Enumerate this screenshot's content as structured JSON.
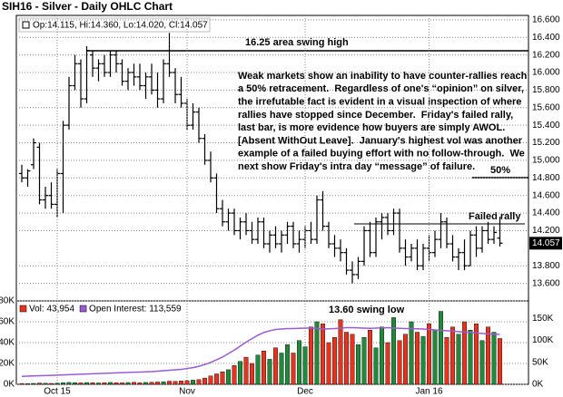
{
  "chart_data": [
    {
      "type": "ohlc",
      "title": "SIH16 - Silver - Daily OHLC Chart",
      "legend": "Op:14.115, Hi:14.360, Lo:14.020, Cl:14.057",
      "color": "#000000",
      "open": [
        14.85,
        14.8,
        14.95,
        15.15,
        14.55,
        14.6,
        14.5,
        14.85,
        15.4,
        15.85,
        16.1,
        15.7,
        16.2,
        16.05,
        16.1,
        16.0,
        16.2,
        16.1,
        15.9,
        16.0,
        15.95,
        15.85,
        15.95,
        15.8,
        15.7,
        16.1,
        16.0,
        15.75,
        15.65,
        15.4,
        15.55,
        15.25,
        15.0,
        14.8,
        14.45,
        14.3,
        14.4,
        14.2,
        14.3,
        14.2,
        14.1,
        14.3,
        14.05,
        14.15,
        14.05,
        14.15,
        14.25,
        14.05,
        14.1,
        14.2,
        14.1,
        14.55,
        14.25,
        14.05,
        14.0,
        13.95,
        13.75,
        13.7,
        13.85,
        14.2,
        13.95,
        14.3,
        14.35,
        14.2,
        14.4,
        14.0,
        13.9,
        14.0,
        13.8,
        14.0,
        13.95,
        14.1,
        14.3,
        14.05,
        13.9,
        13.95,
        13.8,
        14.15,
        14.0,
        14.2,
        14.1,
        14.115
      ],
      "high": [
        14.95,
        14.9,
        15.25,
        15.2,
        14.7,
        14.75,
        14.9,
        15.45,
        15.95,
        16.2,
        16.15,
        16.3,
        16.25,
        16.15,
        16.2,
        16.25,
        16.25,
        16.15,
        16.05,
        16.1,
        16.1,
        16.0,
        16.1,
        16.0,
        16.15,
        16.45,
        16.05,
        15.95,
        15.7,
        15.65,
        15.6,
        15.3,
        15.1,
        14.85,
        14.55,
        14.45,
        14.45,
        14.35,
        14.4,
        14.3,
        14.35,
        14.35,
        14.2,
        14.25,
        14.2,
        14.3,
        14.3,
        14.2,
        14.25,
        14.3,
        14.6,
        14.65,
        14.3,
        14.15,
        14.1,
        14.0,
        13.85,
        13.9,
        14.25,
        14.3,
        14.35,
        14.4,
        14.4,
        14.45,
        14.45,
        14.1,
        14.05,
        14.1,
        14.05,
        14.15,
        14.2,
        14.4,
        14.35,
        14.15,
        14.0,
        14.1,
        14.2,
        14.25,
        14.25,
        14.3,
        14.25,
        14.36
      ],
      "low": [
        14.75,
        14.7,
        14.9,
        14.5,
        14.45,
        14.45,
        14.35,
        14.4,
        15.35,
        15.8,
        15.6,
        15.65,
        15.95,
        15.9,
        15.95,
        15.95,
        16.0,
        15.85,
        15.8,
        15.85,
        15.8,
        15.7,
        15.75,
        15.6,
        15.65,
        15.95,
        15.65,
        15.6,
        15.35,
        15.35,
        15.2,
        14.95,
        14.75,
        14.4,
        14.25,
        14.2,
        14.15,
        14.1,
        14.15,
        14.05,
        14.05,
        14.0,
        13.95,
        14.0,
        13.95,
        14.05,
        14.0,
        13.95,
        14.0,
        14.05,
        14.05,
        14.2,
        14.0,
        13.9,
        13.85,
        13.7,
        13.6,
        13.65,
        13.8,
        13.9,
        13.9,
        14.1,
        14.15,
        14.15,
        13.95,
        13.8,
        13.85,
        13.75,
        13.75,
        13.85,
        13.9,
        14.0,
        14.0,
        13.85,
        13.75,
        13.75,
        13.8,
        13.9,
        13.95,
        14.05,
        14.05,
        14.02
      ],
      "close": [
        14.8,
        14.88,
        15.2,
        14.55,
        14.6,
        14.5,
        14.85,
        15.4,
        15.85,
        16.1,
        15.7,
        16.25,
        16.05,
        16.1,
        16.0,
        16.2,
        16.1,
        15.9,
        16.0,
        15.95,
        15.85,
        15.95,
        15.8,
        15.7,
        16.1,
        16.0,
        15.75,
        15.65,
        15.4,
        15.55,
        15.25,
        15.0,
        14.8,
        14.45,
        14.3,
        14.4,
        14.2,
        14.3,
        14.2,
        14.1,
        14.3,
        14.05,
        14.15,
        14.05,
        14.15,
        14.25,
        14.05,
        14.1,
        14.2,
        14.1,
        14.55,
        14.25,
        14.05,
        14.0,
        13.95,
        13.75,
        13.7,
        13.85,
        14.2,
        13.95,
        14.3,
        14.35,
        14.2,
        14.4,
        14.0,
        13.9,
        14.0,
        13.8,
        14.0,
        13.95,
        14.1,
        14.3,
        14.05,
        13.9,
        13.95,
        13.8,
        14.15,
        14.0,
        14.2,
        14.1,
        14.18,
        14.057
      ],
      "ylim": [
        13.4,
        16.65
      ],
      "yticks": [
        {
          "value": 13.6,
          "label": "13.600"
        },
        {
          "value": 13.8,
          "label": "13.800"
        },
        {
          "value": 14.2,
          "label": "14.200"
        },
        {
          "value": 14.4,
          "label": "14.400"
        },
        {
          "value": 14.6,
          "label": "14.600"
        },
        {
          "value": 14.8,
          "label": "14.800"
        },
        {
          "value": 15.0,
          "label": "15.000"
        },
        {
          "value": 15.2,
          "label": "15.200"
        },
        {
          "value": 15.4,
          "label": "15.400"
        },
        {
          "value": 15.6,
          "label": "15.600"
        },
        {
          "value": 15.8,
          "label": "15.800"
        },
        {
          "value": 16.0,
          "label": "16.000"
        },
        {
          "value": 16.2,
          "label": "16.200"
        },
        {
          "value": 16.4,
          "label": "16.400"
        },
        {
          "value": 16.6,
          "label": "16.600"
        }
      ],
      "grid": true,
      "annotations": [
        "16.25 area swing high",
        "50%",
        "Failed rally"
      ],
      "note_lines": [
        "Weak markets show an inability to have counter-rallies reach",
        "a 50% retracement.  Regardless of one's “opinion” on silver,",
        "the irrefutable fact is evident in a visual inspection of where",
        "rallies have stopped since December.  Friday's failed rally,",
        "last bar, is more evidence how buyers are simply AWOL.",
        "[Absent WithOut Leave].  January's highest vol was another",
        "example of a failed buying effort with no follow-through.  We",
        "next show Friday's intra day “message” of failure."
      ]
    },
    {
      "type": "bar",
      "categories": [
        null,
        null,
        null,
        null,
        null,
        null,
        "Oct 15",
        null,
        null,
        null,
        null,
        null,
        null,
        null,
        null,
        null,
        null,
        null,
        null,
        null,
        null,
        null,
        null,
        null,
        null,
        null,
        null,
        null,
        "Nov",
        null,
        null,
        null,
        null,
        null,
        null,
        null,
        null,
        null,
        null,
        null,
        null,
        null,
        null,
        null,
        null,
        null,
        null,
        null,
        "Dec",
        null,
        null,
        null,
        null,
        null,
        null,
        null,
        null,
        null,
        null,
        null,
        null,
        null,
        null,
        null,
        null,
        null,
        null,
        null,
        null,
        "Jan 16",
        null,
        null,
        null,
        null,
        null,
        null,
        null,
        null,
        null,
        null,
        null,
        null
      ],
      "series": [
        {
          "name": "Vol: 43,954",
          "color": "#e8321e",
          "up_color": "#1f8a3a",
          "axis": "y",
          "values": [
            800,
            700,
            900,
            1200,
            1000,
            900,
            1100,
            1500,
            1800,
            1600,
            1400,
            1700,
            1500,
            1300,
            1600,
            1800,
            1500,
            1400,
            1700,
            1900,
            1600,
            1800,
            2000,
            2200,
            2500,
            3000,
            2800,
            3200,
            3500,
            4000,
            4500,
            6000,
            8000,
            10000,
            12000,
            14000,
            18000,
            22000,
            26000,
            20000,
            28000,
            32000,
            24000,
            35000,
            30000,
            38000,
            30000,
            42000,
            36000,
            55000,
            60000,
            58000,
            40000,
            45000,
            62000,
            50000,
            48000,
            38000,
            45000,
            52000,
            35000,
            55000,
            40000,
            64000,
            42000,
            48000,
            60000,
            50000,
            46000,
            58000,
            52000,
            70000,
            45000,
            55000,
            48000,
            60000,
            52000,
            58000,
            42000,
            55000,
            50000,
            43954
          ]
        },
        {
          "name": "Open Interest: 113,559",
          "color": "#9b59d6",
          "axis": "y2",
          "values": [
            18000,
            18500,
            19000,
            19500,
            20000,
            20500,
            21000,
            21500,
            22000,
            22500,
            23000,
            23500,
            24000,
            24500,
            25000,
            25500,
            26000,
            26500,
            27000,
            27500,
            28000,
            28500,
            29000,
            30000,
            31000,
            32000,
            33000,
            34000,
            36000,
            38000,
            41000,
            45000,
            50000,
            56000,
            62000,
            70000,
            78000,
            87000,
            96000,
            104000,
            112000,
            118000,
            122000,
            125000,
            126000,
            127000,
            127000,
            127500,
            128000,
            128000,
            127000,
            126000,
            126500,
            127000,
            128000,
            129000,
            129000,
            128500,
            128000,
            127500,
            128000,
            128500,
            129000,
            128000,
            127500,
            127000,
            127000,
            126500,
            126000,
            125000,
            124000,
            123000,
            122000,
            121000,
            120000,
            119000,
            118000,
            117000,
            116000,
            115000,
            114500,
            113559
          ]
        }
      ],
      "ylim": [
        0,
        80000
      ],
      "yticks": [
        {
          "value": 0,
          "label": "0K"
        },
        {
          "value": 20000,
          "label": "20K"
        },
        {
          "value": 40000,
          "label": "40K"
        },
        {
          "value": 60000,
          "label": "60K"
        },
        {
          "value": 80000,
          "label": "80K"
        }
      ],
      "y2lim": [
        0,
        190000
      ],
      "y2ticks": [
        {
          "value": 0,
          "label": "0K"
        },
        {
          "value": 50000,
          "label": "50K"
        },
        {
          "value": 100000,
          "label": "100K"
        },
        {
          "value": 150000,
          "label": "150K"
        }
      ],
      "grid": true,
      "annotations": [
        "13.60 swing low"
      ]
    }
  ]
}
